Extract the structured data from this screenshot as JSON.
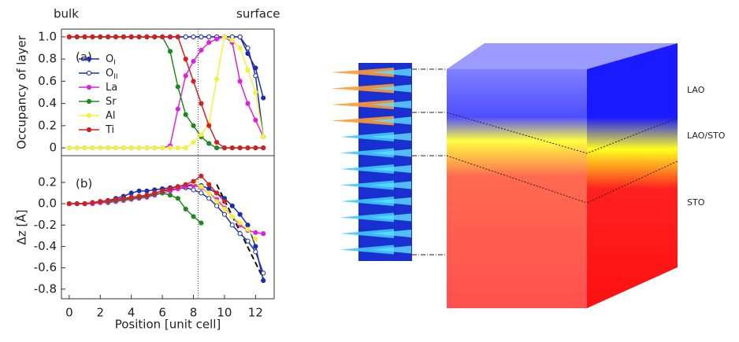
{
  "chart_data": [
    {
      "type": "line",
      "panel_label": "(a)",
      "ylabel": "Occupancy of layer",
      "annotations": [
        "bulk",
        "surface"
      ],
      "x": [
        0,
        0.5,
        1,
        1.5,
        2,
        2.5,
        3,
        3.5,
        4,
        4.5,
        5,
        5.5,
        6,
        6.5,
        7,
        7.5,
        8,
        8.5,
        9,
        9.5,
        10,
        10.5,
        11,
        11.5,
        12,
        12.5
      ],
      "xlim": [
        -0.5,
        13.2
      ],
      "ylim": [
        -0.07,
        1.07
      ],
      "yticks": [
        0,
        0.2,
        0.4,
        0.6,
        0.8,
        {
          "value": 1,
          "label": "1.0"
        }
      ],
      "vline": 8.3,
      "series": [
        {
          "name": "O",
          "subscript": "I",
          "color": "#1a2fb0",
          "marker": "filled",
          "values": [
            1,
            1,
            1,
            1,
            1,
            1,
            1,
            1,
            1,
            1,
            1,
            1,
            1,
            1,
            1,
            1,
            1,
            1,
            1,
            1,
            1,
            1,
            1,
            0.85,
            0.72,
            0.45
          ]
        },
        {
          "name": "O",
          "subscript": "II",
          "color": "#1a2fb0",
          "marker": "open",
          "values": [
            1,
            1,
            1,
            1,
            1,
            1,
            1,
            1,
            1,
            1,
            1,
            1,
            1,
            1,
            1,
            1,
            1,
            1,
            1,
            1,
            1,
            1,
            1,
            0.9,
            0.65,
            0.1
          ]
        },
        {
          "name": "La",
          "color": "#e020e0",
          "marker": "filled",
          "values": [
            0,
            0,
            0,
            0,
            0,
            0,
            0,
            0,
            0,
            0,
            0,
            0,
            0,
            0.02,
            0.35,
            0.65,
            0.78,
            0.88,
            0.95,
            0.98,
            1,
            0.95,
            0.6,
            0.4,
            0.25,
            0.1
          ]
        },
        {
          "name": "Sr",
          "color": "#1e8a1e",
          "marker": "filled",
          "values": [
            1,
            1,
            1,
            1,
            1,
            1,
            1,
            1,
            1,
            1,
            1,
            1,
            1,
            0.87,
            0.55,
            0.3,
            0.2,
            0.1,
            0.04,
            0,
            0,
            0,
            0,
            0,
            0,
            0
          ]
        },
        {
          "name": "Al",
          "color": "#f2f23a",
          "marker": "filled",
          "values": [
            0,
            0,
            0,
            0,
            0,
            0,
            0,
            0,
            0,
            0,
            0,
            0,
            0,
            0,
            0,
            0,
            0.05,
            0.12,
            0.22,
            0.62,
            1,
            0.97,
            0.9,
            0.7,
            0.5,
            0.1
          ]
        },
        {
          "name": "Ti",
          "color": "#d42020",
          "marker": "filled",
          "values": [
            1,
            1,
            1,
            1,
            1,
            1,
            1,
            1,
            1,
            1,
            1,
            1,
            1,
            1,
            1,
            0.8,
            0.6,
            0.4,
            0.2,
            0.05,
            0,
            0,
            0,
            0,
            0,
            0
          ]
        }
      ]
    },
    {
      "type": "line",
      "panel_label": "(b)",
      "ylabel": "Δz [Å]",
      "xlabel": "Position [unit cell]",
      "x": [
        0,
        0.5,
        1,
        1.5,
        2,
        2.5,
        3,
        3.5,
        4,
        4.5,
        5,
        5.5,
        6,
        6.5,
        7,
        7.5,
        8,
        8.5,
        9,
        9.5,
        10,
        10.5,
        11,
        11.5,
        12,
        12.5
      ],
      "xlim": [
        -0.5,
        13.2
      ],
      "xticks": [
        0,
        2,
        4,
        6,
        8,
        10,
        12
      ],
      "ylim": [
        -0.89,
        0.45
      ],
      "yticks": [
        -0.8,
        -0.6,
        -0.4,
        -0.2,
        {
          "value": 0,
          "label": "0.0"
        },
        0.2
      ],
      "vline": 8.3,
      "guide_line": {
        "x": [
          9.5,
          12.5
        ],
        "y": [
          0.18,
          -0.7
        ]
      },
      "series": [
        {
          "color": "#1a2fb0",
          "marker": "filled",
          "values": [
            0,
            0,
            0,
            0.01,
            0.02,
            0.03,
            0.05,
            0.07,
            0.1,
            0.12,
            0.12,
            0.13,
            0.14,
            0.15,
            0.16,
            0.17,
            0.18,
            0.17,
            0.14,
            0.1,
            0.05,
            -0.02,
            -0.1,
            -0.2,
            -0.4,
            -0.72
          ]
        },
        {
          "color": "#1a2fb0",
          "marker": "open",
          "values": [
            0,
            0,
            0,
            0.01,
            0.02,
            0.03,
            0.04,
            0.05,
            0.06,
            0.07,
            0.08,
            0.1,
            0.12,
            0.13,
            0.14,
            0.15,
            0.13,
            0.1,
            0.05,
            -0.02,
            -0.1,
            -0.2,
            -0.28,
            -0.35,
            -0.45,
            -0.65
          ]
        },
        {
          "color": "#e020e0",
          "marker": "filled",
          "values": [
            0,
            0,
            0,
            0,
            0.01,
            0.01,
            0.02,
            0.03,
            0.04,
            0.05,
            0.06,
            0.08,
            0.1,
            0.12,
            0.14,
            0.16,
            0.17,
            0.15,
            0.1,
            0.04,
            -0.04,
            -0.12,
            -0.2,
            -0.25,
            -0.27,
            -0.28
          ]
        },
        {
          "color": "#1e8a1e",
          "marker": "filled",
          "values": [
            0,
            0,
            0,
            0.01,
            0.02,
            0.02,
            0.03,
            0.04,
            0.05,
            0.06,
            0.07,
            0.09,
            0.1,
            0.08,
            0.05,
            -0.05,
            -0.12,
            -0.18,
            null,
            null,
            null,
            null,
            null,
            null,
            null,
            null
          ]
        },
        {
          "color": "#f2f23a",
          "marker": "filled",
          "values": [
            null,
            null,
            null,
            null,
            null,
            null,
            null,
            null,
            null,
            null,
            null,
            null,
            null,
            null,
            null,
            null,
            0.2,
            0.16,
            0.1,
            0.02,
            -0.05,
            -0.12,
            -0.18,
            -0.24,
            -0.33,
            null
          ]
        },
        {
          "color": "#d42020",
          "marker": "filled",
          "values": [
            0,
            0,
            0,
            0.01,
            0.02,
            0.03,
            0.04,
            0.05,
            0.06,
            0.07,
            0.08,
            0.1,
            0.12,
            0.14,
            0.16,
            0.18,
            0.21,
            0.26,
            0.18,
            0.1,
            0.02,
            null,
            null,
            null,
            null,
            null
          ]
        }
      ]
    }
  ],
  "diagram": {
    "labels": [
      "LAO",
      "LAO/STO",
      "STO"
    ]
  }
}
